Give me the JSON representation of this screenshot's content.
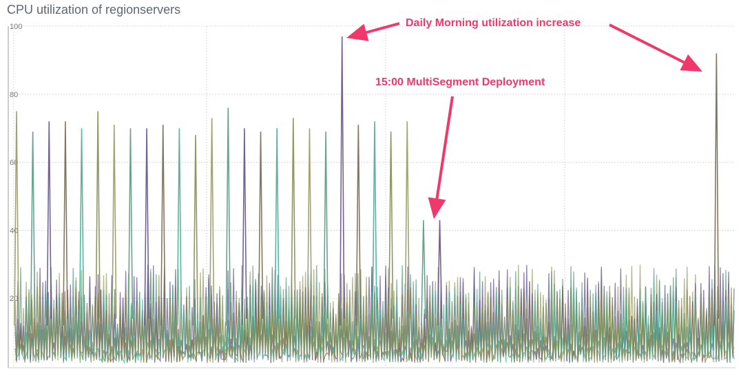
{
  "chart_data": {
    "type": "line",
    "title": "CPU utilization of regionservers",
    "xlabel": "",
    "ylabel": "",
    "ylim": [
      0,
      100
    ],
    "y_ticks": [
      20,
      40,
      60,
      80,
      100
    ],
    "grid": true,
    "legend": "none",
    "series_colors": [
      "#9b9f6a",
      "#5f9e85",
      "#6a5a8e",
      "#7d6e55",
      "#4fb09a",
      "#8a8f5a"
    ],
    "peaks": [
      {
        "x": 0.0,
        "y": 75
      },
      {
        "x": 1.0,
        "y": 69
      },
      {
        "x": 2.0,
        "y": 72
      },
      {
        "x": 3.0,
        "y": 72
      },
      {
        "x": 4.0,
        "y": 70
      },
      {
        "x": 5.0,
        "y": 75
      },
      {
        "x": 6.0,
        "y": 71
      },
      {
        "x": 7.0,
        "y": 70
      },
      {
        "x": 8.0,
        "y": 70
      },
      {
        "x": 9.0,
        "y": 71
      },
      {
        "x": 10.0,
        "y": 70
      },
      {
        "x": 11.0,
        "y": 68
      },
      {
        "x": 12.0,
        "y": 73
      },
      {
        "x": 13.0,
        "y": 76
      },
      {
        "x": 14.0,
        "y": 70
      },
      {
        "x": 15.0,
        "y": 69
      },
      {
        "x": 16.0,
        "y": 70
      },
      {
        "x": 17.0,
        "y": 73
      },
      {
        "x": 18.0,
        "y": 70
      },
      {
        "x": 19.0,
        "y": 69
      },
      {
        "x": 20.0,
        "y": 97
      },
      {
        "x": 21.0,
        "y": 71
      },
      {
        "x": 22.0,
        "y": 72
      },
      {
        "x": 23.0,
        "y": 69
      },
      {
        "x": 24.0,
        "y": 72
      },
      {
        "x": 25.0,
        "y": 43
      },
      {
        "x": 26.0,
        "y": 43
      },
      {
        "x": 43.0,
        "y": 92
      }
    ],
    "annotations": [
      {
        "text": "Daily Morning utilization increase",
        "color": "#f0386b"
      },
      {
        "text": "15:00 MultiSegment Deployment",
        "color": "#f0386b"
      }
    ]
  }
}
